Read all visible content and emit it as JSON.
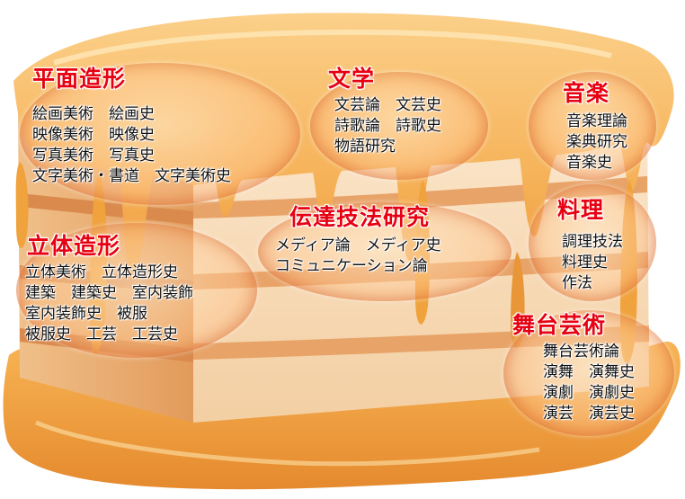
{
  "palette": {
    "heading": "#e60012",
    "body_text": "#111111",
    "cake_top": "#f6b35a",
    "syrup": "#f0a23c",
    "syrup_dark": "#d9772a",
    "sponge_light": "#f8d8b0",
    "sponge_stripe": "#e8a368",
    "sponge_cream": "#fbe8cf"
  },
  "categories": [
    {
      "id": "heimen",
      "title": "平面造形",
      "items": [
        "絵画美術　絵画史",
        "映像美術　映像史",
        "写真美術　写真史",
        "文字美術・書道　文字美術史"
      ]
    },
    {
      "id": "bungaku",
      "title": "文学",
      "items": [
        "文芸論　文芸史",
        "詩歌論　詩歌史",
        "物語研究"
      ]
    },
    {
      "id": "ongaku",
      "title": "音楽",
      "items": [
        "音楽理論",
        "楽典研究",
        "音楽史"
      ]
    },
    {
      "id": "ryouri",
      "title": "料理",
      "items": [
        "調理技法",
        "料理史",
        "作法"
      ]
    },
    {
      "id": "dentatsu",
      "title": "伝達技法研究",
      "items": [
        "メディア論　メディア史",
        "コミュニケーション論"
      ]
    },
    {
      "id": "rittai",
      "title": "立体造形",
      "items": [
        "立体美術　立体造形史",
        "建築　建築史　室内装飾",
        "室内装飾史　被服",
        "被服史　工芸　工芸史"
      ]
    },
    {
      "id": "butai",
      "title": "舞台芸術",
      "items": [
        "舞台芸術論",
        "演舞　演舞史",
        "演劇　演劇史",
        "演芸　演芸史"
      ]
    }
  ]
}
